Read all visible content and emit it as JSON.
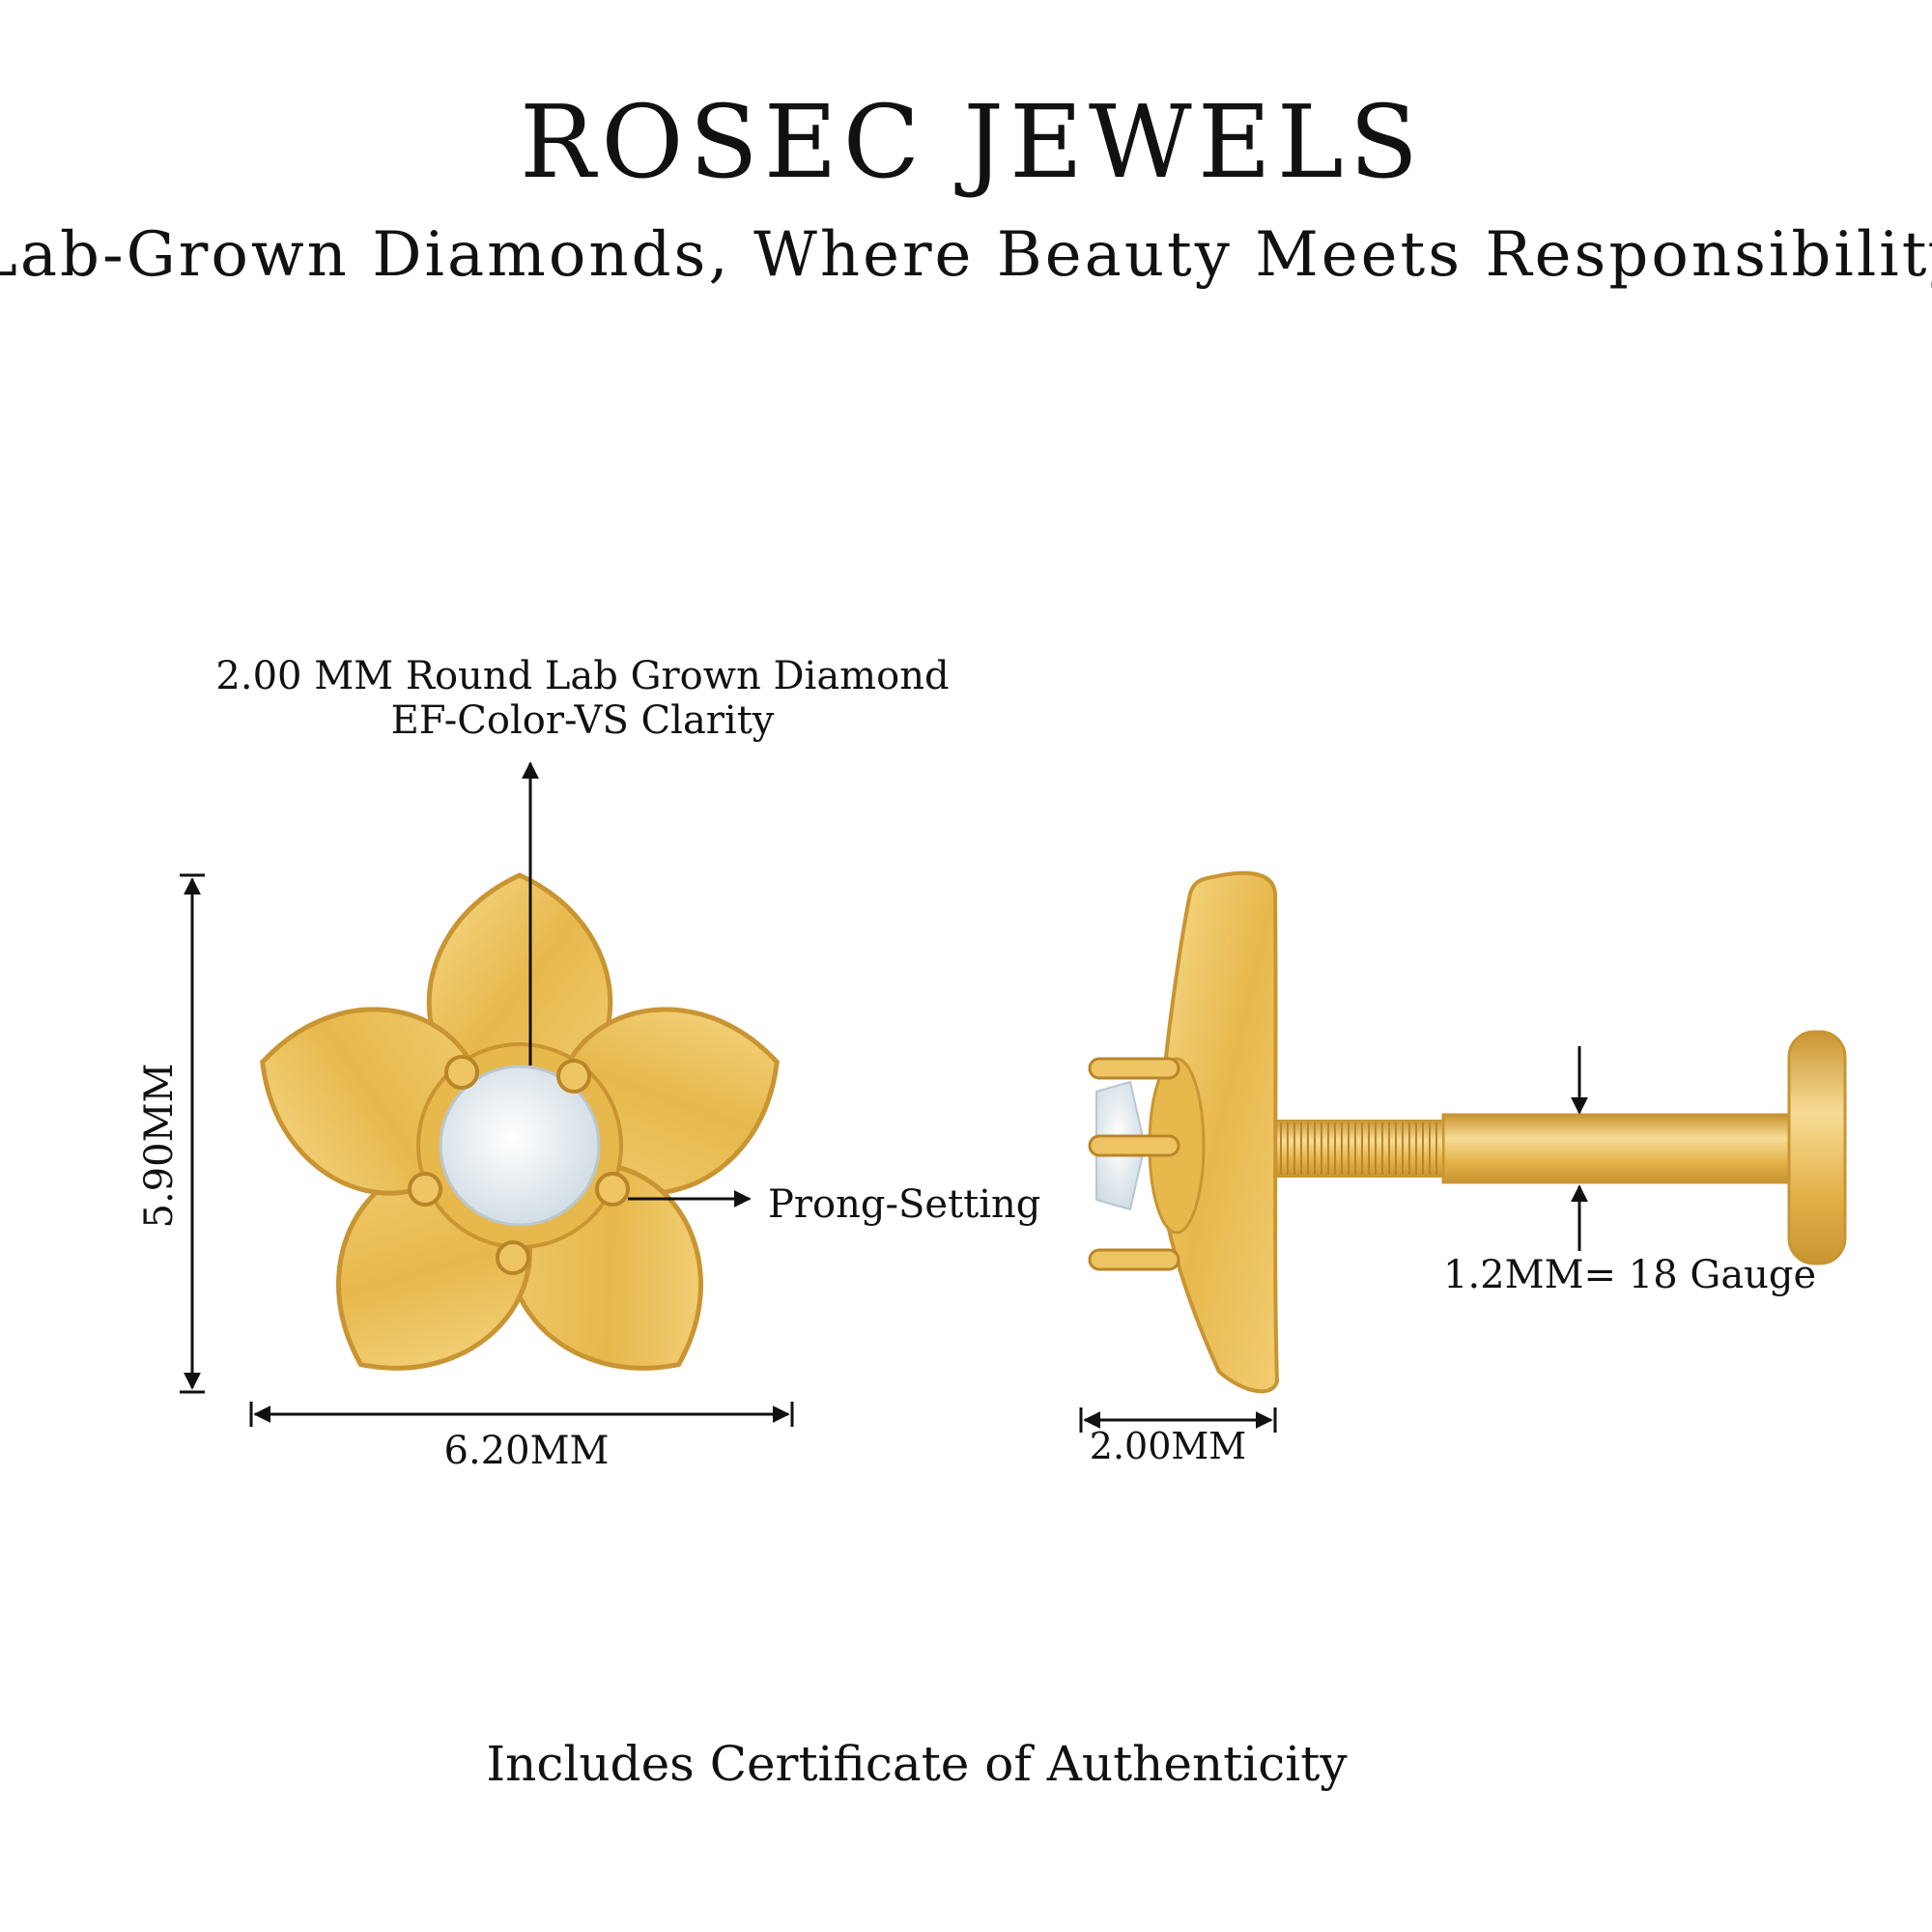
{
  "header": {
    "brand": "ROSEC JEWELS",
    "tagline": "Lab-Grown Diamonds, Where Beauty Meets Responsibility"
  },
  "front_view": {
    "stone_label_line1": "2.00 MM Round Lab Grown Diamond",
    "stone_label_line2": "EF-Color-VS Clarity",
    "height_label": "5.90MM",
    "width_label": "6.20MM",
    "setting_label": "Prong-Setting"
  },
  "side_view": {
    "depth_label": "2.00MM",
    "gauge_label": "1.2MM= 18 Gauge"
  },
  "footer": {
    "certificate_note": "Includes Certificate of Authenticity"
  },
  "colors": {
    "gold_light": "#f7d98a",
    "gold": "#e7b84c",
    "gold_dark": "#c99532",
    "diamond": "#eef4f8",
    "text": "#111111"
  }
}
